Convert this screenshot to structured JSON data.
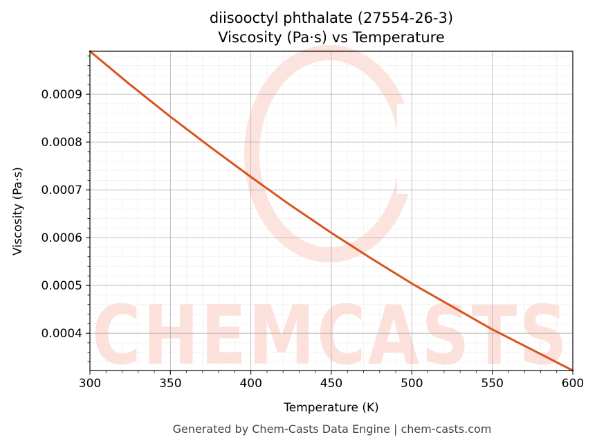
{
  "chart_data": {
    "type": "line",
    "title_line1": "diisooctyl phthalate (27554-26-3)",
    "title_line2": "Viscosity (Pa·s) vs Temperature",
    "xlabel": "Temperature (K)",
    "ylabel": "Viscosity (Pa·s)",
    "xlim": [
      300,
      600
    ],
    "ylim": [
      0.000322,
      0.00099
    ],
    "x_ticks": [
      300,
      350,
      400,
      450,
      500,
      550,
      600
    ],
    "x_tick_labels": [
      "300",
      "350",
      "400",
      "450",
      "500",
      "550",
      "600"
    ],
    "y_ticks": [
      0.0004,
      0.0005,
      0.0006,
      0.0007,
      0.0008,
      0.0009
    ],
    "y_tick_labels": [
      "0.0004",
      "0.0005",
      "0.0006",
      "0.0007",
      "0.0008",
      "0.0009"
    ],
    "grid": true,
    "series": [
      {
        "color": "#d9531e",
        "x": [
          300,
          325,
          350,
          375,
          400,
          425,
          450,
          475,
          500,
          525,
          550,
          575,
          600
        ],
        "y": [
          0.00099,
          0.00092,
          0.000853,
          0.000789,
          0.000727,
          0.000667,
          0.00061,
          0.000556,
          0.000504,
          0.000456,
          0.000408,
          0.000365,
          0.000322
        ]
      }
    ]
  },
  "watermark": {
    "text": "CHEMCASTS",
    "color": "#fde0d9"
  },
  "footer": "Generated by Chem-Casts Data Engine | chem-casts.com"
}
